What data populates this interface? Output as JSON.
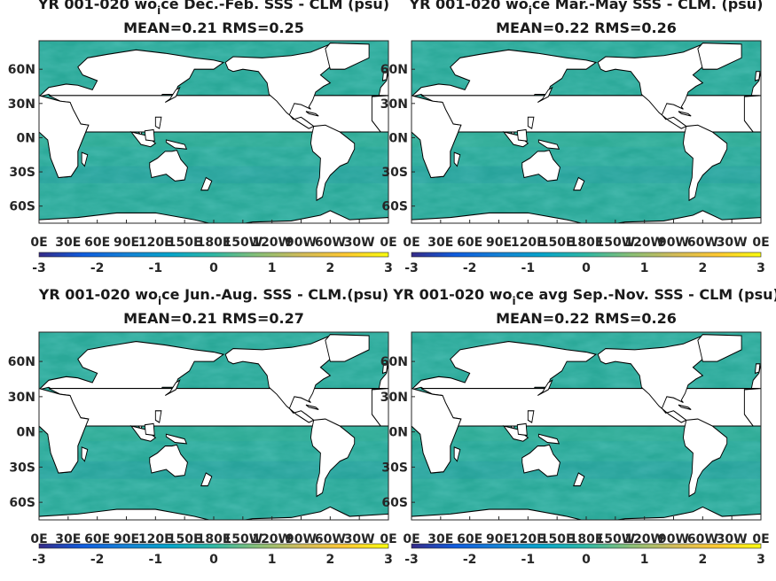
{
  "chart_data": [
    {
      "type": "heatmap",
      "title_parts": [
        "YR 001-020 wo",
        "i",
        "ce  Dec.-Feb. SSS - CLM (psu)"
      ],
      "subtitle": "MEAN=0.21   RMS=0.25",
      "x_ticks": [
        "0E",
        "30E",
        "60E",
        "90E",
        "120E",
        "150E",
        "180E",
        "150W",
        "120W",
        "90W",
        "60W",
        "30W",
        "0E"
      ],
      "y_ticks": [
        "60N",
        "30N",
        "0N",
        "30S",
        "60S"
      ],
      "colorbar": {
        "ticks": [
          "-3",
          "-2",
          "-1",
          "0",
          "1",
          "2",
          "3"
        ],
        "range": [
          -3,
          3
        ],
        "colormap": "parula"
      }
    },
    {
      "type": "heatmap",
      "title_parts": [
        "YR 001-020 wo",
        "i",
        "ce Mar.-May SSS - CLM. (psu)"
      ],
      "subtitle": "MEAN=0.22   RMS=0.26",
      "x_ticks": [
        "0E",
        "30E",
        "60E",
        "90E",
        "120E",
        "150E",
        "180E",
        "150W",
        "120W",
        "90W",
        "60W",
        "30W",
        "0E"
      ],
      "y_ticks": [
        "60N",
        "30N",
        "0N",
        "30S",
        "60S"
      ],
      "colorbar": {
        "ticks": [
          "-3",
          "-2",
          "-1",
          "0",
          "1",
          "2",
          "3"
        ],
        "range": [
          -3,
          3
        ],
        "colormap": "parula"
      }
    },
    {
      "type": "heatmap",
      "title_parts": [
        "YR 001-020 wo",
        "i",
        "ce Jun.-Aug. SSS - CLM.(psu)"
      ],
      "subtitle": "MEAN=0.21   RMS=0.27",
      "x_ticks": [
        "0E",
        "30E",
        "60E",
        "90E",
        "120E",
        "150E",
        "180E",
        "150W",
        "120W",
        "90W",
        "60W",
        "30W",
        "0E"
      ],
      "y_ticks": [
        "60N",
        "30N",
        "0N",
        "30S",
        "60S"
      ],
      "colorbar": {
        "ticks": [
          "-3",
          "-2",
          "-1",
          "0",
          "1",
          "2",
          "3"
        ],
        "range": [
          -3,
          3
        ],
        "colormap": "parula"
      }
    },
    {
      "type": "heatmap",
      "title_parts": [
        "YR 001-020 wo",
        "i",
        "ce avg Sep.-Nov. SSS - CLM (psu)"
      ],
      "subtitle": "MEAN=0.22   RMS=0.26",
      "x_ticks": [
        "0E",
        "30E",
        "60E",
        "90E",
        "120E",
        "150E",
        "180E",
        "150W",
        "120W",
        "90W",
        "60W",
        "30W",
        "0E"
      ],
      "y_ticks": [
        "60N",
        "30N",
        "0N",
        "30S",
        "60S"
      ],
      "colorbar": {
        "ticks": [
          "-3",
          "-2",
          "-1",
          "0",
          "1",
          "2",
          "3"
        ],
        "range": [
          -3,
          3
        ],
        "colormap": "parula"
      }
    }
  ],
  "colors": {
    "ocean": "#2aa898",
    "ocean_light": "#3bb58f",
    "ocean_dark": "#2391a8",
    "land": "#ffffff",
    "coast": "#000000"
  }
}
